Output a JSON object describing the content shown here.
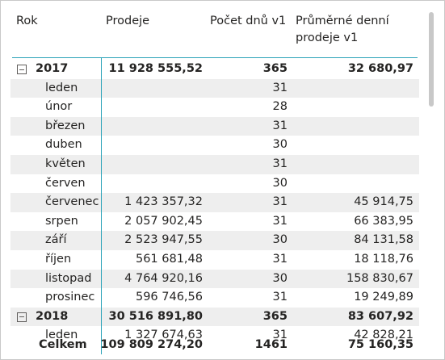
{
  "header": {
    "columns": [
      "Rok",
      "Prodeje",
      "Počet dnů v1",
      "Průměrné denní prodeje v1"
    ]
  },
  "rows": [
    {
      "label": "2017",
      "expandable": true,
      "prodeje": "11 928 555,52",
      "dny": "365",
      "prumer": "32 680,97"
    },
    {
      "label": "leden",
      "dny": "31"
    },
    {
      "label": "únor",
      "dny": "28"
    },
    {
      "label": "březen",
      "dny": "31"
    },
    {
      "label": "duben",
      "dny": "30"
    },
    {
      "label": "květen",
      "dny": "31"
    },
    {
      "label": "červen",
      "dny": "30"
    },
    {
      "label": "červenec",
      "prodeje": "1 423 357,32",
      "dny": "31",
      "prumer": "45 914,75"
    },
    {
      "label": "srpen",
      "prodeje": "2 057 902,45",
      "dny": "31",
      "prumer": "66 383,95"
    },
    {
      "label": "září",
      "prodeje": "2 523 947,55",
      "dny": "30",
      "prumer": "84 131,58"
    },
    {
      "label": "říjen",
      "prodeje": "561 681,48",
      "dny": "31",
      "prumer": "18 118,76"
    },
    {
      "label": "listopad",
      "prodeje": "4 764 920,16",
      "dny": "30",
      "prumer": "158 830,67"
    },
    {
      "label": "prosinec",
      "prodeje": "596 746,56",
      "dny": "31",
      "prumer": "19 249,89"
    },
    {
      "label": "2018",
      "expandable": true,
      "prodeje": "30 516 891,80",
      "dny": "365",
      "prumer": "83 607,92"
    },
    {
      "label": "leden",
      "prodeje": "1 327 674,63",
      "dny": "31",
      "prumer": "42 828,21"
    }
  ],
  "total": {
    "label": "Celkem",
    "prodeje": "109 809 274,20",
    "dny": "1461",
    "prumer": "75 160,35"
  }
}
